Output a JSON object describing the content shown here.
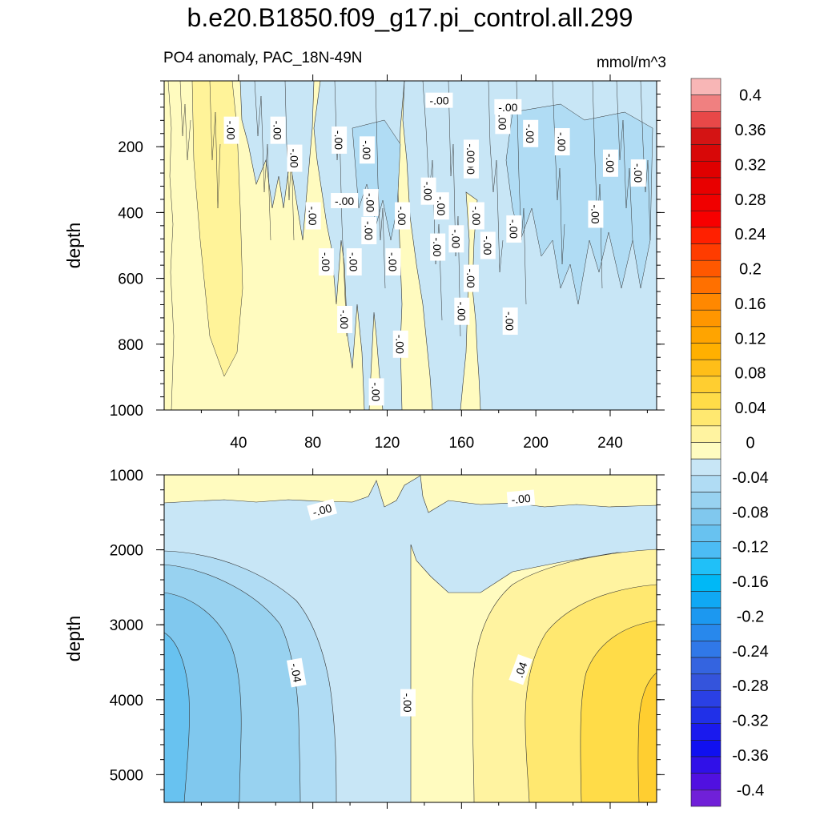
{
  "figure": {
    "title": "b.e20.B1850.f09_g17.pi_control.all.299",
    "subtitle": "PO4 anomaly, PAC_18N-49N",
    "units": "mmol/m^3"
  },
  "chart_data": [
    {
      "type": "heatmap",
      "panel": "upper",
      "title": "PO4 anomaly, PAC_18N-49N",
      "xlabel": "",
      "ylabel": "depth",
      "xlim": [
        0,
        265
      ],
      "ylim": [
        1000,
        0
      ],
      "x_ticks": [
        40,
        80,
        120,
        160,
        200,
        240
      ],
      "y_ticks": [
        200,
        400,
        600,
        800,
        1000
      ],
      "contour_labels": [
        {
          "text": "-.00",
          "x": 36,
          "y": 150,
          "rot": 90
        },
        {
          "text": "-.00",
          "x": 61,
          "y": 150,
          "rot": 90
        },
        {
          "text": "-.00",
          "x": 70,
          "y": 235,
          "rot": 90
        },
        {
          "text": "-.00",
          "x": 80,
          "y": 410,
          "rot": 90
        },
        {
          "text": "-.00",
          "x": 94,
          "y": 180,
          "rot": 90
        },
        {
          "text": "-.00",
          "x": 97,
          "y": 365,
          "rot": 0
        },
        {
          "text": "-.00",
          "x": 109,
          "y": 210,
          "rot": 90
        },
        {
          "text": "-.00",
          "x": 110,
          "y": 455,
          "rot": 90
        },
        {
          "text": "-.00",
          "x": 111,
          "y": 370,
          "rot": 90
        },
        {
          "text": "-.00",
          "x": 87,
          "y": 550,
          "rot": 90
        },
        {
          "text": "-.00",
          "x": 102,
          "y": 550,
          "rot": 90
        },
        {
          "text": "-.00",
          "x": 97,
          "y": 725,
          "rot": 90
        },
        {
          "text": "-.00",
          "x": 123,
          "y": 550,
          "rot": 90
        },
        {
          "text": "-.00",
          "x": 127,
          "y": 800,
          "rot": 90
        },
        {
          "text": "-.00",
          "x": 114,
          "y": 945,
          "rot": 90
        },
        {
          "text": "-.00",
          "x": 128,
          "y": 410,
          "rot": 90
        },
        {
          "text": "-.00",
          "x": 142,
          "y": 335,
          "rot": 90
        },
        {
          "text": "-.00",
          "x": 147,
          "y": 505,
          "rot": 90
        },
        {
          "text": "-.00",
          "x": 149,
          "y": 380,
          "rot": 90
        },
        {
          "text": "-.00",
          "x": 148,
          "y": 60,
          "rot": 0
        },
        {
          "text": "-.00",
          "x": 157,
          "y": 480,
          "rot": 90
        },
        {
          "text": "-.00",
          "x": 160,
          "y": 700,
          "rot": 90
        },
        {
          "text": "-.00",
          "x": 168,
          "y": 410,
          "rot": 90
        },
        {
          "text": "-.00",
          "x": 165,
          "y": 255,
          "rot": 90
        },
        {
          "text": "-.00",
          "x": 165,
          "y": 600,
          "rot": 90
        },
        {
          "text": "-.00",
          "x": 165,
          "y": 220,
          "rot": 90
        },
        {
          "text": "-.00",
          "x": 174,
          "y": 500,
          "rot": 90
        },
        {
          "text": "-.00",
          "x": 182,
          "y": 120,
          "rot": 90
        },
        {
          "text": "-.00",
          "x": 185,
          "y": 80,
          "rot": 0
        },
        {
          "text": "-.00",
          "x": 188,
          "y": 450,
          "rot": 90
        },
        {
          "text": "-.00",
          "x": 186,
          "y": 730,
          "rot": 90
        },
        {
          "text": "-.00",
          "x": 197,
          "y": 160,
          "rot": 90
        },
        {
          "text": "-.00",
          "x": 214,
          "y": 185,
          "rot": 90
        },
        {
          "text": "-.00",
          "x": 232,
          "y": 405,
          "rot": 90
        },
        {
          "text": "-.00",
          "x": 240,
          "y": 250,
          "rot": 90
        },
        {
          "text": "-.00",
          "x": 255,
          "y": 280,
          "rot": 90
        }
      ]
    },
    {
      "type": "heatmap",
      "panel": "lower",
      "title": "",
      "xlabel": "",
      "ylabel": "depth",
      "xlim": [
        0,
        265
      ],
      "ylim": [
        5370,
        1000
      ],
      "x_ticks": [
        40,
        80,
        120,
        160,
        200,
        240
      ],
      "y_ticks": [
        1000,
        2000,
        3000,
        4000,
        5000
      ],
      "contour_levels": [
        -0.06,
        -0.04,
        -0.02,
        0.0,
        0.02,
        0.04,
        0.06
      ],
      "contour_labels": [
        {
          "text": "-.00",
          "x": 85,
          "y": 1470,
          "rot": -15
        },
        {
          "text": "-.00",
          "x": 192,
          "y": 1320,
          "rot": -5
        },
        {
          "text": "-.04",
          "x": 71,
          "y": 3640,
          "rot": 80
        },
        {
          "text": "-.00",
          "x": 131,
          "y": 4040,
          "rot": 90
        },
        {
          "text": ".04",
          "x": 192,
          "y": 3600,
          "rot": -70
        }
      ]
    }
  ],
  "colorbar": {
    "tick_labels": [
      "0.4",
      "0.36",
      "0.32",
      "0.28",
      "0.24",
      "0.2",
      "0.16",
      "0.12",
      "0.08",
      "0.04",
      "0",
      "-0.04",
      "-0.08",
      "-0.12",
      "-0.16",
      "-0.2",
      "-0.24",
      "-0.28",
      "-0.32",
      "-0.36",
      "-0.4"
    ],
    "colors": [
      "#f8b6b6",
      "#f08080",
      "#e84848",
      "#d41414",
      "#d80808",
      "#e00000",
      "#e80000",
      "#f00000",
      "#f80000",
      "#ff2000",
      "#ff3c00",
      "#ff5800",
      "#ff7000",
      "#ff8800",
      "#ff9600",
      "#ffa400",
      "#ffb000",
      "#ffbe18",
      "#ffce30",
      "#ffdc48",
      "#ffe870",
      "#fff3a0",
      "#fffcc0",
      "#c8e6f6",
      "#b0dcf4",
      "#98d2f0",
      "#80c8ee",
      "#68c2f0",
      "#4cbcf4",
      "#20c0f8",
      "#00b8f6",
      "#10a8f4",
      "#1c98f0",
      "#2888ec",
      "#3078e8",
      "#3464e0",
      "#3454dc",
      "#2a40e4",
      "#2030e8",
      "#1a1aee",
      "#1010f0",
      "#3010e8",
      "#5010e0",
      "#7020d8"
    ]
  },
  "axes_text": {
    "upper_ylabel": "depth",
    "lower_ylabel": "depth"
  }
}
